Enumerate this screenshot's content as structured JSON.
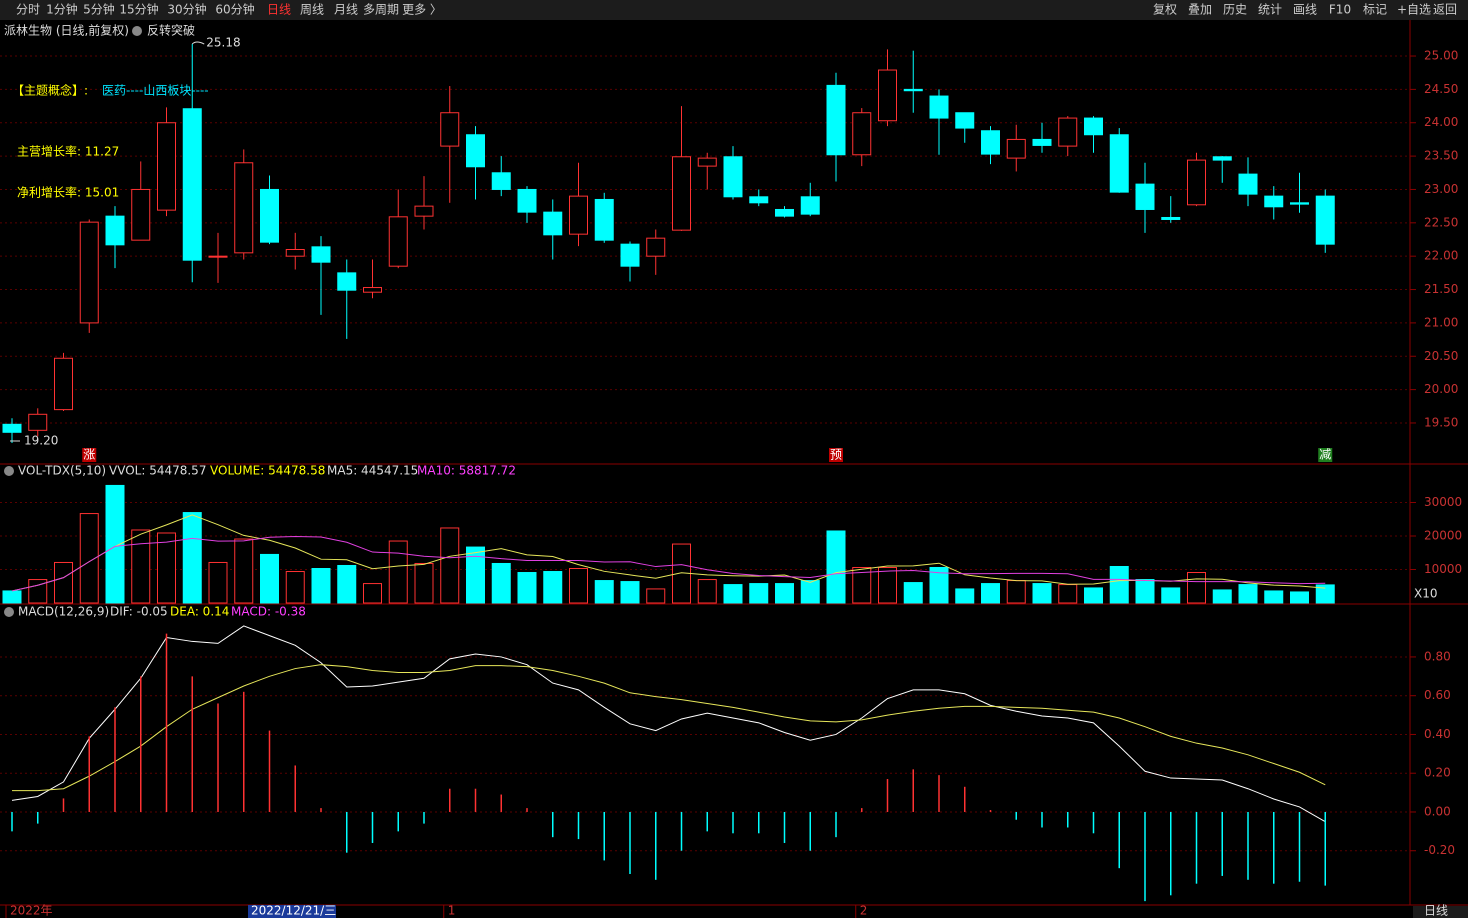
{
  "toolbar": {
    "left": [
      "分时",
      "1分钟",
      "5分钟",
      "15分钟",
      "30分钟",
      "60分钟",
      "日线",
      "周线",
      "月线",
      "多周期",
      "更多 〉"
    ],
    "active": 6,
    "right": [
      "复权",
      "叠加",
      "历史",
      "统计",
      "画线",
      "F10",
      "标记",
      "+自选",
      "返回"
    ]
  },
  "status": "日线",
  "chart_data": [
    {
      "type": "candlestick",
      "title": "派林生物 (日线,前复权)",
      "subtitle": "反转突破",
      "up_color": "#ff3232",
      "down_color": "#00ffff",
      "annotations": [
        {
          "text": "【主题概念】:",
          "color": "#ffff00"
        },
        {
          "text": "医药----山西板块----",
          "color": "#00e5ff"
        },
        {
          "text": "主营增长率: 11.27",
          "color": "#ffff00"
        },
        {
          "text": "净利增长率: 15.01",
          "color": "#ffff00"
        }
      ],
      "high_label": "25.18",
      "low_label": "19.20",
      "markers": [
        {
          "text": "涨",
          "color": "#c00000"
        },
        {
          "text": "预",
          "color": "#c00000"
        },
        {
          "text": "减",
          "color": "#208020"
        }
      ],
      "open": [
        19.48,
        19.39,
        19.7,
        21.0,
        22.6,
        22.24,
        22.69,
        24.21,
        22.0,
        22.05,
        23.0,
        22.0,
        22.14,
        21.75,
        21.46,
        21.85,
        22.6,
        23.65,
        23.82,
        23.25,
        23.0,
        22.66,
        22.33,
        22.85,
        22.18,
        22.0,
        22.39,
        23.35,
        23.49,
        22.89,
        22.7,
        22.89,
        24.56,
        23.52,
        24.03,
        24.5,
        24.4,
        24.15,
        23.88,
        23.47,
        23.75,
        23.65,
        24.07,
        23.82,
        23.08,
        22.58,
        22.77,
        23.49,
        23.23,
        22.9,
        22.8,
        22.9
      ],
      "high": [
        19.57,
        19.72,
        20.55,
        22.55,
        22.75,
        23.42,
        24.23,
        25.18,
        22.35,
        23.6,
        23.21,
        22.35,
        22.3,
        21.95,
        21.95,
        23.0,
        23.2,
        24.55,
        23.95,
        23.5,
        23.05,
        22.85,
        23.4,
        22.95,
        22.22,
        22.4,
        24.25,
        23.55,
        23.65,
        23.0,
        22.75,
        23.1,
        24.75,
        24.22,
        25.1,
        25.08,
        24.5,
        24.15,
        23.95,
        23.97,
        24.0,
        24.1,
        24.1,
        23.92,
        23.4,
        22.9,
        23.55,
        23.5,
        23.48,
        23.05,
        23.25,
        23.0
      ],
      "low": [
        19.2,
        19.3,
        19.68,
        20.85,
        21.82,
        22.24,
        22.6,
        21.61,
        21.6,
        21.95,
        22.18,
        21.8,
        21.12,
        20.76,
        21.37,
        21.82,
        22.4,
        22.8,
        22.85,
        22.9,
        22.5,
        21.95,
        22.15,
        22.2,
        21.62,
        21.72,
        22.38,
        23.0,
        22.85,
        22.75,
        22.58,
        22.6,
        23.12,
        23.35,
        23.95,
        24.15,
        23.52,
        23.7,
        23.38,
        23.27,
        23.55,
        23.5,
        23.55,
        22.95,
        22.35,
        22.5,
        22.75,
        23.1,
        22.75,
        22.55,
        22.65,
        22.05
      ],
      "close": [
        19.36,
        19.63,
        20.47,
        22.51,
        22.17,
        23.0,
        24.0,
        21.94,
        22.0,
        23.4,
        22.21,
        22.1,
        21.91,
        21.49,
        21.53,
        22.59,
        22.75,
        24.15,
        23.34,
        23.0,
        22.66,
        22.32,
        22.9,
        22.24,
        21.85,
        22.27,
        23.49,
        23.47,
        22.89,
        22.8,
        22.6,
        22.63,
        23.52,
        24.15,
        24.79,
        24.48,
        24.07,
        23.92,
        23.53,
        23.75,
        23.66,
        24.07,
        23.82,
        22.96,
        22.7,
        22.55,
        23.44,
        23.44,
        22.93,
        22.74,
        22.78,
        22.18
      ],
      "ylim": [
        18.9,
        25.51
      ],
      "yticks": [
        {
          "value": 19.5,
          "label": "19.50"
        },
        {
          "value": 20,
          "label": "20.00"
        },
        {
          "value": 20.5,
          "label": "20.50"
        },
        {
          "value": 21,
          "label": "21.00"
        },
        {
          "value": 21.5,
          "label": "21.50"
        },
        {
          "value": 22,
          "label": "22.00"
        },
        {
          "value": 22.5,
          "label": "22.50"
        },
        {
          "value": 23,
          "label": "23.00"
        },
        {
          "value": 23.5,
          "label": "23.50"
        },
        {
          "value": 24,
          "label": "24.00"
        },
        {
          "value": 24.5,
          "label": "24.50"
        },
        {
          "value": 25,
          "label": "25.00"
        }
      ],
      "grid": true
    },
    {
      "type": "volume",
      "title": "VOL-TDX(5,10)",
      "subtitle": "VVOL: 54478.57",
      "scale_label": "X10",
      "series": [
        {
          "name": "VOLUME: 54478.58",
          "legend_color": "#ffff00",
          "kind": "bar",
          "values": [
            3600,
            7000,
            12100,
            26700,
            35100,
            21800,
            20900,
            27000,
            12100,
            19100,
            14500,
            9400,
            10300,
            11200,
            5800,
            18500,
            11800,
            22400,
            16700,
            11800,
            9100,
            9400,
            10300,
            6700,
            6400,
            4200,
            17600,
            7000,
            5500,
            5800,
            5800,
            6700,
            21500,
            10600,
            10600,
            6100,
            10600,
            4200,
            5800,
            6700,
            5800,
            5500,
            4500,
            10900,
            7000,
            4500,
            9100,
            3900,
            5500,
            3600,
            3300,
            5400
          ]
        },
        {
          "name": "MA5: 44547.15",
          "color": "#e6e65a",
          "legend_color": "#dddddd",
          "kind": "line",
          "values": [
            3600,
            5300,
            7570,
            12350,
            16900,
            20540,
            23320,
            26300,
            23380,
            20180,
            18720,
            16420,
            13080,
            12900,
            10240,
            11040,
            11520,
            13940,
            15040,
            16240,
            14360,
            13880,
            11460,
            9460,
            8380,
            7400,
            9040,
            8380,
            8140,
            8020,
            8340,
            6160,
            9060,
            10080,
            11040,
            11100,
            11880,
            8420,
            7460,
            6680,
            6620,
            5600,
            5660,
            6680,
            6740,
            6480,
            7200,
            7080,
            6000,
            5320,
            5080,
            4455
          ]
        },
        {
          "name": "MA10: 58817.72",
          "color": "#e040e0",
          "legend_color": "#ff40ff",
          "kind": "line",
          "values": [
            3600,
            5300,
            7570,
            12350,
            16900,
            17700,
            18170,
            19280,
            18480,
            18540,
            19630,
            19870,
            19690,
            18140,
            15210,
            14880,
            13970,
            13510,
            13970,
            13240,
            12700,
            12700,
            12700,
            12250,
            12310,
            10880,
            11460,
            9920,
            8800,
            8200,
            7870,
            7600,
            8720,
            9110,
            9530,
            9720,
            9020,
            8740,
            8770,
            8860,
            8860,
            8740,
            7040,
            7070,
            6710,
            6550,
            6400,
            6370,
            6340,
            6030,
            5780,
            5882
          ]
        }
      ],
      "ylim": [
        0,
        41200
      ],
      "yticks": [
        10000,
        20000,
        30000
      ],
      "grid": true
    },
    {
      "type": "macd",
      "title": "MACD(12,26,9)",
      "categories": [
        "2022年",
        null,
        null,
        null,
        null,
        null,
        null,
        null,
        null,
        null,
        null,
        null,
        null,
        null,
        null,
        null,
        null,
        "1",
        null,
        null,
        null,
        null,
        null,
        null,
        null,
        null,
        null,
        null,
        null,
        null,
        null,
        null,
        null,
        "2",
        null,
        null,
        null,
        null,
        null,
        null,
        null,
        null,
        null,
        null,
        null,
        null,
        null,
        null,
        null,
        null,
        null,
        null
      ],
      "cursor_label": "2022/12/21/三",
      "series": [
        {
          "name": "DIF: -0.05",
          "color": "#ffffff",
          "legend_color": "#dddddd",
          "kind": "line",
          "values": [
            0.06,
            0.08,
            0.155,
            0.38,
            0.53,
            0.69,
            0.9,
            0.88,
            0.87,
            0.96,
            0.91,
            0.86,
            0.77,
            0.645,
            0.65,
            0.67,
            0.69,
            0.79,
            0.815,
            0.8,
            0.76,
            0.665,
            0.63,
            0.54,
            0.455,
            0.42,
            0.48,
            0.51,
            0.485,
            0.46,
            0.41,
            0.37,
            0.4,
            0.485,
            0.585,
            0.63,
            0.63,
            0.61,
            0.55,
            0.52,
            0.495,
            0.485,
            0.46,
            0.34,
            0.21,
            0.175,
            0.17,
            0.165,
            0.12,
            0.067,
            0.026,
            -0.05
          ]
        },
        {
          "name": "DEA: 0.14",
          "color": "#e6e65a",
          "legend_color": "#ffff00",
          "kind": "line",
          "values": [
            0.11,
            0.11,
            0.12,
            0.185,
            0.26,
            0.34,
            0.44,
            0.53,
            0.59,
            0.65,
            0.7,
            0.74,
            0.76,
            0.75,
            0.73,
            0.72,
            0.72,
            0.73,
            0.755,
            0.755,
            0.75,
            0.73,
            0.7,
            0.665,
            0.615,
            0.595,
            0.58,
            0.56,
            0.54,
            0.515,
            0.49,
            0.47,
            0.465,
            0.475,
            0.5,
            0.52,
            0.535,
            0.545,
            0.545,
            0.54,
            0.535,
            0.525,
            0.515,
            0.485,
            0.44,
            0.39,
            0.355,
            0.33,
            0.295,
            0.25,
            0.205,
            0.14
          ]
        },
        {
          "name": "MACD: -0.38",
          "legend_color": "#ff40ff",
          "kind": "bar",
          "up_color": "#ff3232",
          "down_color": "#00ffff",
          "values": [
            -0.1,
            -0.06,
            0.07,
            0.39,
            0.54,
            0.7,
            0.92,
            0.7,
            0.56,
            0.62,
            0.42,
            0.24,
            0.02,
            -0.21,
            -0.16,
            -0.1,
            -0.06,
            0.12,
            0.12,
            0.09,
            0.02,
            -0.13,
            -0.14,
            -0.25,
            -0.32,
            -0.35,
            -0.2,
            -0.1,
            -0.11,
            -0.11,
            -0.16,
            -0.2,
            -0.13,
            0.02,
            0.17,
            0.22,
            0.19,
            0.13,
            0.01,
            -0.04,
            -0.08,
            -0.08,
            -0.11,
            -0.29,
            -0.46,
            -0.43,
            -0.37,
            -0.33,
            -0.35,
            -0.37,
            -0.36,
            -0.38
          ]
        }
      ],
      "ylim": [
        -0.48,
        1.068
      ],
      "yticks": [
        {
          "value": -0.2,
          "label": "-0.20"
        },
        {
          "value": 0,
          "label": "0.00"
        },
        {
          "value": 0.2,
          "label": "0.20"
        },
        {
          "value": 0.4,
          "label": "0.40"
        },
        {
          "value": 0.6,
          "label": "0.60"
        },
        {
          "value": 0.8,
          "label": "0.80"
        }
      ],
      "grid": true
    }
  ]
}
